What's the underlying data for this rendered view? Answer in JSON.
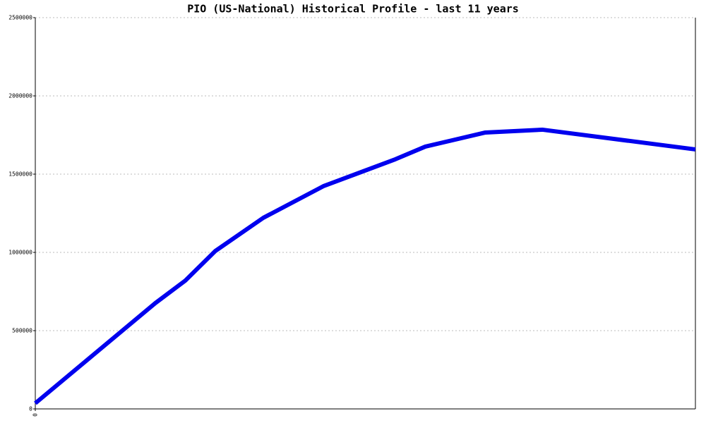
{
  "chart_data": {
    "type": "line",
    "title": "PIO (US-National) Historical Profile - last 11 years",
    "x": [
      0,
      2,
      2.5,
      3,
      3.8,
      4.8,
      6,
      6.5,
      7.5,
      8.45,
      11
    ],
    "series": [
      {
        "color": "#0000ee",
        "values": [
          36000,
          676000,
          820000,
          1009000,
          1221000,
          1423000,
          1595000,
          1676000,
          1766000,
          1784000,
          1658000
        ]
      }
    ],
    "xlim": [
      0,
      11
    ],
    "xticks": [
      0
    ],
    "ylim": [
      0,
      2500000
    ],
    "yticks": [
      0,
      500000,
      1000000,
      1500000,
      2000000,
      2500000
    ],
    "grid": true
  }
}
